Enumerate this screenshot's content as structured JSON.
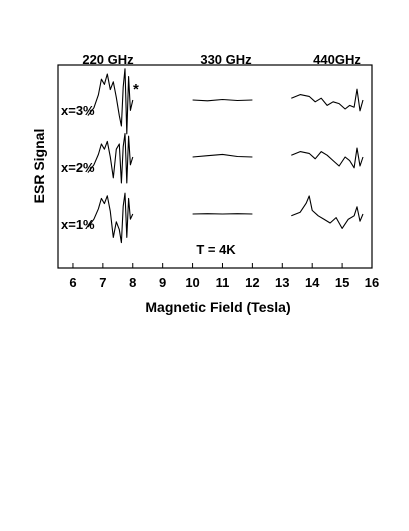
{
  "chart_data": {
    "type": "line",
    "xlabel": "Magnetic Field (Tesla)",
    "ylabel": "ESR Signal",
    "xlim": [
      5.5,
      16
    ],
    "x_ticks": [
      "6",
      "7",
      "8",
      "9",
      "10",
      "11",
      "12",
      "13",
      "14",
      "15",
      "16"
    ],
    "y_ticks": [],
    "grid": false,
    "legend": "none",
    "frequency_labels": [
      "220 GHz",
      "330 GHz",
      "440GHz"
    ],
    "annotations": {
      "temperature": "T = 4K",
      "marker": "*"
    },
    "series": [
      {
        "name": "x=3%",
        "segments": [
          {
            "band": "220 GHz",
            "x": [
              6.5,
              6.7,
              6.85,
              6.95,
              7.05,
              7.15,
              7.25,
              7.35,
              7.45,
              7.55,
              7.62,
              7.68,
              7.74,
              7.8,
              7.86,
              7.92,
              8.0
            ],
            "y": [
              -0.6,
              -0.3,
              0.2,
              0.8,
              0.6,
              1.0,
              0.4,
              0.7,
              0.1,
              -0.6,
              -1.0,
              0.5,
              1.2,
              -1.3,
              0.9,
              -0.4,
              0.0
            ]
          },
          {
            "band": "330 GHz",
            "x": [
              10.0,
              10.5,
              11.0,
              11.5,
              12.0
            ],
            "y": [
              0.0,
              -0.03,
              0.02,
              -0.02,
              0.0
            ]
          },
          {
            "band": "440GHz",
            "x": [
              13.3,
              13.6,
              13.9,
              14.1,
              14.3,
              14.5,
              14.7,
              14.9,
              15.1,
              15.25,
              15.4,
              15.5,
              15.6,
              15.7
            ],
            "y": [
              0.1,
              0.3,
              0.2,
              -0.1,
              0.1,
              -0.3,
              -0.1,
              -0.2,
              -0.5,
              -0.3,
              -0.4,
              0.6,
              -0.6,
              0.0
            ]
          }
        ]
      },
      {
        "name": "x=2%",
        "segments": [
          {
            "band": "220 GHz",
            "x": [
              6.5,
              6.7,
              6.85,
              6.95,
              7.05,
              7.15,
              7.25,
              7.35,
              7.45,
              7.55,
              7.62,
              7.68,
              7.74,
              7.8,
              7.86,
              7.92,
              8.0
            ],
            "y": [
              -0.6,
              -0.3,
              0.1,
              0.5,
              0.3,
              0.6,
              0.0,
              -0.8,
              0.3,
              0.5,
              -1.0,
              0.4,
              0.9,
              -1.0,
              0.8,
              -0.3,
              0.0
            ]
          },
          {
            "band": "330 GHz",
            "x": [
              10.0,
              10.5,
              11.0,
              11.5,
              12.0
            ],
            "y": [
              0.0,
              0.05,
              0.1,
              0.02,
              0.0
            ]
          },
          {
            "band": "440GHz",
            "x": [
              13.3,
              13.6,
              13.9,
              14.1,
              14.3,
              14.5,
              14.7,
              14.9,
              15.1,
              15.25,
              15.4,
              15.5,
              15.6,
              15.7
            ],
            "y": [
              0.1,
              0.3,
              0.2,
              -0.1,
              0.3,
              0.1,
              -0.2,
              -0.5,
              0.0,
              -0.2,
              -0.6,
              0.5,
              -0.5,
              0.0
            ]
          }
        ]
      },
      {
        "name": "x=1%",
        "segments": [
          {
            "band": "220 GHz",
            "x": [
              6.5,
              6.7,
              6.85,
              6.95,
              7.05,
              7.15,
              7.25,
              7.35,
              7.45,
              7.55,
              7.62,
              7.68,
              7.74,
              7.8,
              7.86,
              7.92,
              8.0
            ],
            "y": [
              -0.5,
              -0.2,
              0.2,
              0.6,
              0.4,
              0.7,
              0.1,
              -0.9,
              -0.3,
              -0.6,
              -1.1,
              0.3,
              0.8,
              -0.9,
              0.6,
              -0.2,
              0.0
            ]
          },
          {
            "band": "330 GHz",
            "x": [
              10.0,
              10.5,
              11.0,
              11.5,
              12.0
            ],
            "y": [
              0.0,
              0.01,
              0.0,
              0.01,
              0.0
            ]
          },
          {
            "band": "440GHz",
            "x": [
              13.3,
              13.6,
              13.8,
              13.9,
              14.0,
              14.2,
              14.4,
              14.6,
              14.8,
              15.0,
              15.2,
              15.4,
              15.5,
              15.6,
              15.7
            ],
            "y": [
              -0.1,
              0.1,
              0.6,
              1.0,
              0.2,
              -0.1,
              -0.3,
              -0.5,
              -0.2,
              -0.8,
              -0.3,
              -0.1,
              0.4,
              -0.4,
              0.0
            ]
          }
        ]
      }
    ]
  }
}
